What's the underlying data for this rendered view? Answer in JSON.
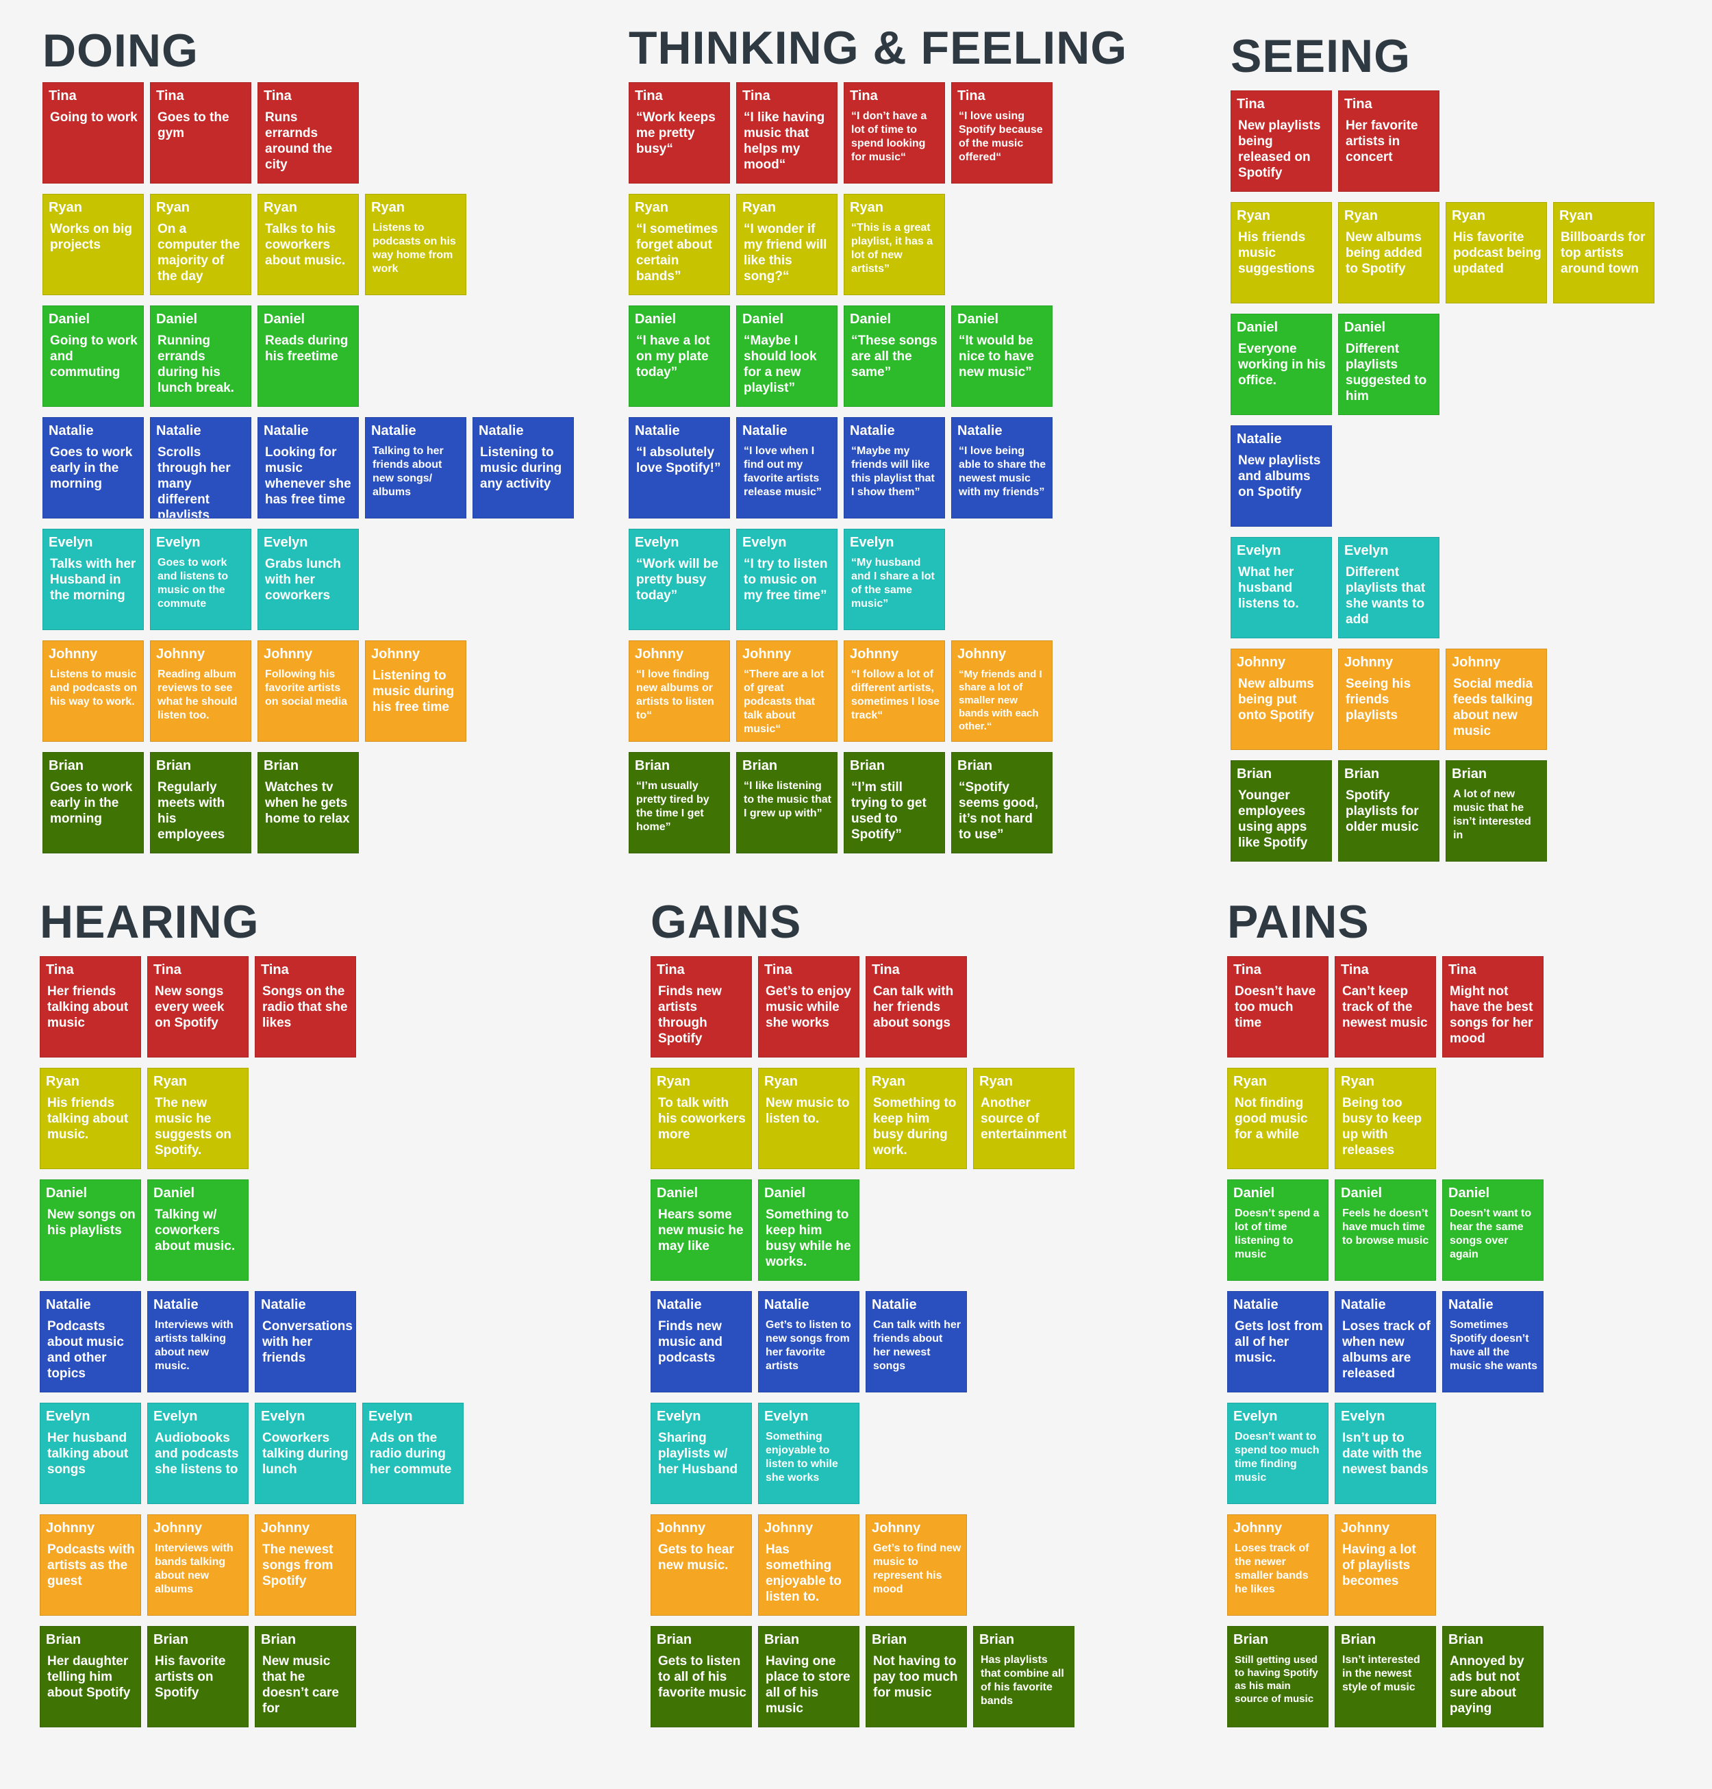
{
  "colors": {
    "Tina": "#c52a2a",
    "Ryan": "#c7c300",
    "Daniel": "#2dbb2b",
    "Natalie": "#2a4fbe",
    "Evelyn": "#22c0b8",
    "Johnny": "#f5a623",
    "Brian": "#3f7405"
  },
  "sections": [
    {
      "title": "DOING",
      "rows": [
        {
          "person": "Tina",
          "notes": [
            "Going to work",
            "Goes to the gym",
            "Runs errarnds around the city"
          ]
        },
        {
          "person": "Ryan",
          "notes": [
            "Works on big projects",
            "On a computer the majority of the day",
            "Talks to his coworkers about music.",
            "Listens to podcasts on his way home from work"
          ]
        },
        {
          "person": "Daniel",
          "notes": [
            "Going to work and commuting",
            "Running errands during his lunch break.",
            "Reads during his freetime"
          ]
        },
        {
          "person": "Natalie",
          "notes": [
            "Goes to work early in the morning",
            "Scrolls through her many different playlists",
            "Looking for music whenever she has free time",
            "Talking to her friends about new songs/ albums",
            "Listening to music during any activity"
          ]
        },
        {
          "person": "Evelyn",
          "notes": [
            "Talks with her Husband in the morning",
            "Goes to work and listens to music on the commute",
            "Grabs lunch with her coworkers"
          ]
        },
        {
          "person": "Johnny",
          "notes": [
            "Listens to music and podcasts on his way to work.",
            "Reading album reviews to see what he should listen too.",
            "Following his favorite artists on social media",
            "Listening to music during his free time"
          ]
        },
        {
          "person": "Brian",
          "notes": [
            "Goes to work early in the morning",
            "Regularly meets with his employees",
            "Watches tv when he gets home to relax"
          ]
        }
      ]
    },
    {
      "title": "THINKING & FEELING",
      "rows": [
        {
          "person": "Tina",
          "notes": [
            "“Work keeps me pretty busy“",
            "“I like having music that helps my mood“",
            "“I don’t have a lot of time to spend looking for music“",
            "“I love using Spotify because of the music offered“"
          ]
        },
        {
          "person": "Ryan",
          "notes": [
            "“I sometimes forget about certain bands”",
            "“I wonder if my friend will like this song?“",
            "“This is a great playlist, it has a lot of new artists”"
          ]
        },
        {
          "person": "Daniel",
          "notes": [
            "“I have a lot on my plate today”",
            "“Maybe I should look for a new playlist”",
            "“These songs are all the same”",
            "“It would be nice to have new music”"
          ]
        },
        {
          "person": "Natalie",
          "notes": [
            "“I absolutely love Spotify!”",
            "“I love when I find out my favorite artists release music”",
            "“Maybe my friends will like this playlist that I show them”",
            "“I love being able to share the newest music with my friends”"
          ]
        },
        {
          "person": "Evelyn",
          "notes": [
            "“Work will be pretty busy today”",
            "“I try to listen to music on my free time”",
            "“My husband and I share a lot of the same music”"
          ]
        },
        {
          "person": "Johnny",
          "notes": [
            "“I love finding new albums or artists to listen to“",
            "“There are a lot of great podcasts that talk about music“",
            "“I follow a lot of different artists, sometimes I lose track“",
            "“My friends and I share a lot of smaller new bands with each other.“"
          ]
        },
        {
          "person": "Brian",
          "notes": [
            "“I’m usually pretty tired by the time I get home”",
            "“I like listening to the music that I grew up with”",
            "“I’m still trying to get used to Spotify”",
            "“Spotify seems good, it’s not hard to use”"
          ]
        }
      ]
    },
    {
      "title": "SEEING",
      "rows": [
        {
          "person": "Tina",
          "notes": [
            "New playlists being released on Spotify",
            "Her favorite artists in concert"
          ]
        },
        {
          "person": "Ryan",
          "notes": [
            "His friends music suggestions",
            "New albums being added to Spotify",
            "His favorite podcast being updated",
            "Billboards for top artists around town"
          ]
        },
        {
          "person": "Daniel",
          "notes": [
            "Everyone working in his office.",
            "Different playlists suggested to him"
          ]
        },
        {
          "person": "Natalie",
          "notes": [
            "New playlists and albums on Spotify"
          ]
        },
        {
          "person": "Evelyn",
          "notes": [
            "What her husband listens to.",
            "Different playlists that she wants to add"
          ]
        },
        {
          "person": "Johnny",
          "notes": [
            "New albums being put onto Spotify",
            "Seeing his friends playlists",
            "Social media feeds talking about new music"
          ]
        },
        {
          "person": "Brian",
          "notes": [
            "Younger employees using apps like Spotify",
            "Spotify playlists for older music",
            "A lot of new music that he isn’t interested in"
          ]
        }
      ]
    },
    {
      "title": "HEARING",
      "rows": [
        {
          "person": "Tina",
          "notes": [
            "Her friends talking about music",
            "New songs every week on Spotify",
            "Songs on the radio that she likes"
          ]
        },
        {
          "person": "Ryan",
          "notes": [
            "His friends talking about music.",
            "The new music he suggests on Spotify."
          ]
        },
        {
          "person": "Daniel",
          "notes": [
            "New songs on his playlists",
            "Talking w/ coworkers about music."
          ]
        },
        {
          "person": "Natalie",
          "notes": [
            "Podcasts about music and other topics",
            "Interviews with artists talking about new music.",
            "Conversations with her friends"
          ]
        },
        {
          "person": "Evelyn",
          "notes": [
            "Her husband talking about songs",
            "Audiobooks and podcasts she listens to",
            "Coworkers talking during lunch",
            "Ads on the radio during her commute"
          ]
        },
        {
          "person": "Johnny",
          "notes": [
            "Podcasts with artists as the guest",
            "Interviews with bands talking about new albums",
            "The newest songs from Spotify"
          ]
        },
        {
          "person": "Brian",
          "notes": [
            "Her daughter telling him about Spotify",
            "His favorite artists on Spotify",
            "New music that he doesn’t care for"
          ]
        }
      ]
    },
    {
      "title": "GAINS",
      "rows": [
        {
          "person": "Tina",
          "notes": [
            "Finds new artists through Spotify",
            "Get’s to enjoy music while she works",
            "Can talk with her friends about songs"
          ]
        },
        {
          "person": "Ryan",
          "notes": [
            "To talk with his coworkers more",
            "New music to listen to.",
            "Something to keep him busy during work.",
            "Another source of entertainment"
          ]
        },
        {
          "person": "Daniel",
          "notes": [
            "Hears some new music he may like",
            "Something to keep him busy while he works."
          ]
        },
        {
          "person": "Natalie",
          "notes": [
            "Finds new music and podcasts",
            "Get’s to listen to new songs from her favorite artists",
            "Can talk with her friends about her newest songs"
          ]
        },
        {
          "person": "Evelyn",
          "notes": [
            "Sharing playlists w/ her Husband",
            "Something enjoyable to listen to while she works"
          ]
        },
        {
          "person": "Johnny",
          "notes": [
            "Gets to hear new music.",
            "Has something enjoyable to listen to.",
            "Get’s to find new music to represent his mood"
          ]
        },
        {
          "person": "Brian",
          "notes": [
            "Gets to listen to all of his favorite music",
            "Having one place to store all of his music",
            "Not having to pay too much for music",
            "Has playlists that combine all of his favorite bands"
          ]
        }
      ]
    },
    {
      "title": "PAINS",
      "rows": [
        {
          "person": "Tina",
          "notes": [
            "Doesn’t have too much time",
            "Can’t keep track of the newest music",
            "Might not have the best songs for her mood"
          ]
        },
        {
          "person": "Ryan",
          "notes": [
            "Not finding good music for a while",
            "Being too busy to keep up with releases"
          ]
        },
        {
          "person": "Daniel",
          "notes": [
            "Doesn’t spend a lot of time listening to music",
            "Feels he doesn’t have much time to browse music",
            "Doesn’t want to hear the same songs over again"
          ]
        },
        {
          "person": "Natalie",
          "notes": [
            "Gets lost from all of her music.",
            "Loses track of when new albums are released",
            "Sometimes Spotify doesn’t have all the music she wants"
          ]
        },
        {
          "person": "Evelyn",
          "notes": [
            "Doesn’t want to spend too much time finding music",
            "Isn’t up to date with the newest bands"
          ]
        },
        {
          "person": "Johnny",
          "notes": [
            "Loses track of the newer smaller bands he likes",
            "Having a lot of playlists becomes"
          ]
        },
        {
          "person": "Brian",
          "notes": [
            "Still getting used to having Spotify as his main source of music",
            "Isn’t interested in the newest style of music",
            "Annoyed by ads but not sure about paying"
          ]
        }
      ]
    }
  ]
}
